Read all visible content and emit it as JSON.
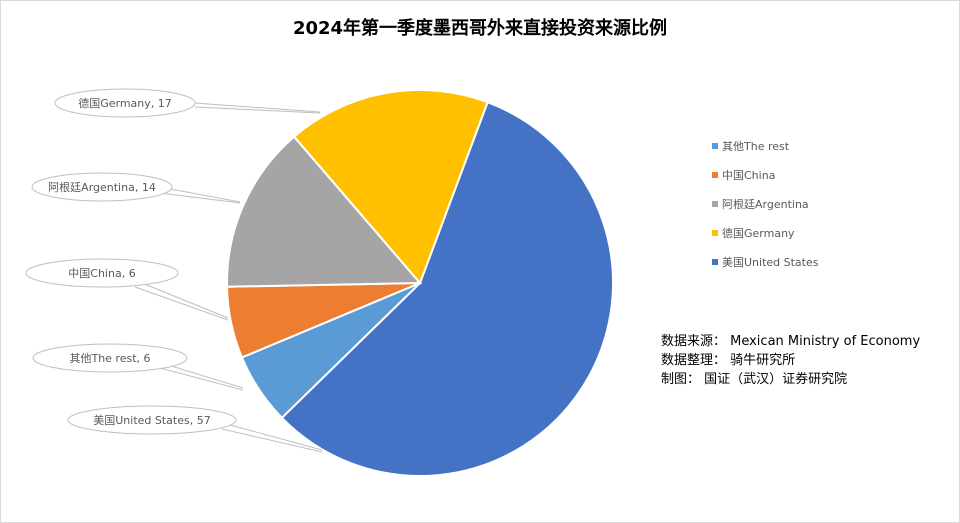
{
  "title": "2024年第一季度墨西哥外来直接投资来源比例",
  "chart_data": {
    "type": "pie",
    "title": "2024年第一季度墨西哥外来直接投资来源比例",
    "categories": [
      "其他The rest",
      "中国China",
      "阿根廷Argentina",
      "德国Germany",
      "美国United States"
    ],
    "values": [
      6,
      6,
      14,
      17,
      57
    ],
    "unit": "%",
    "colors": {
      "其他The rest": "#5b9bd5",
      "中国China": "#ed7d31",
      "阿根廷Argentina": "#a5a5a5",
      "德国Germany": "#ffc000",
      "美国United States": "#4472c4"
    },
    "data_labels": [
      "德国Germany, 17",
      "阿根廷Argentina, 14",
      "中国China, 6",
      "其他The rest, 6",
      "美国United States, 57"
    ],
    "legend_position": "right",
    "start_angle_deg": 20.5
  },
  "legend": [
    {
      "label": "其他The rest",
      "color": "#5b9bd5"
    },
    {
      "label": "中国China",
      "color": "#ed7d31"
    },
    {
      "label": "阿根廷Argentina",
      "color": "#a5a5a5"
    },
    {
      "label": "德国Germany",
      "color": "#ffc000"
    },
    {
      "label": "美国United States",
      "color": "#4472c4"
    }
  ],
  "callouts": {
    "germany": "德国Germany, 17",
    "argentina": "阿根廷Argentina, 14",
    "china": "中国China, 6",
    "rest": "其他The rest, 6",
    "us": "美国United States, 57"
  },
  "source": {
    "line1": "数据来源：  Mexican  Ministry of Economy",
    "line2": "数据整理：  骑牛研究所",
    "line3": "制图：  国证（武汉）证券研究院"
  }
}
